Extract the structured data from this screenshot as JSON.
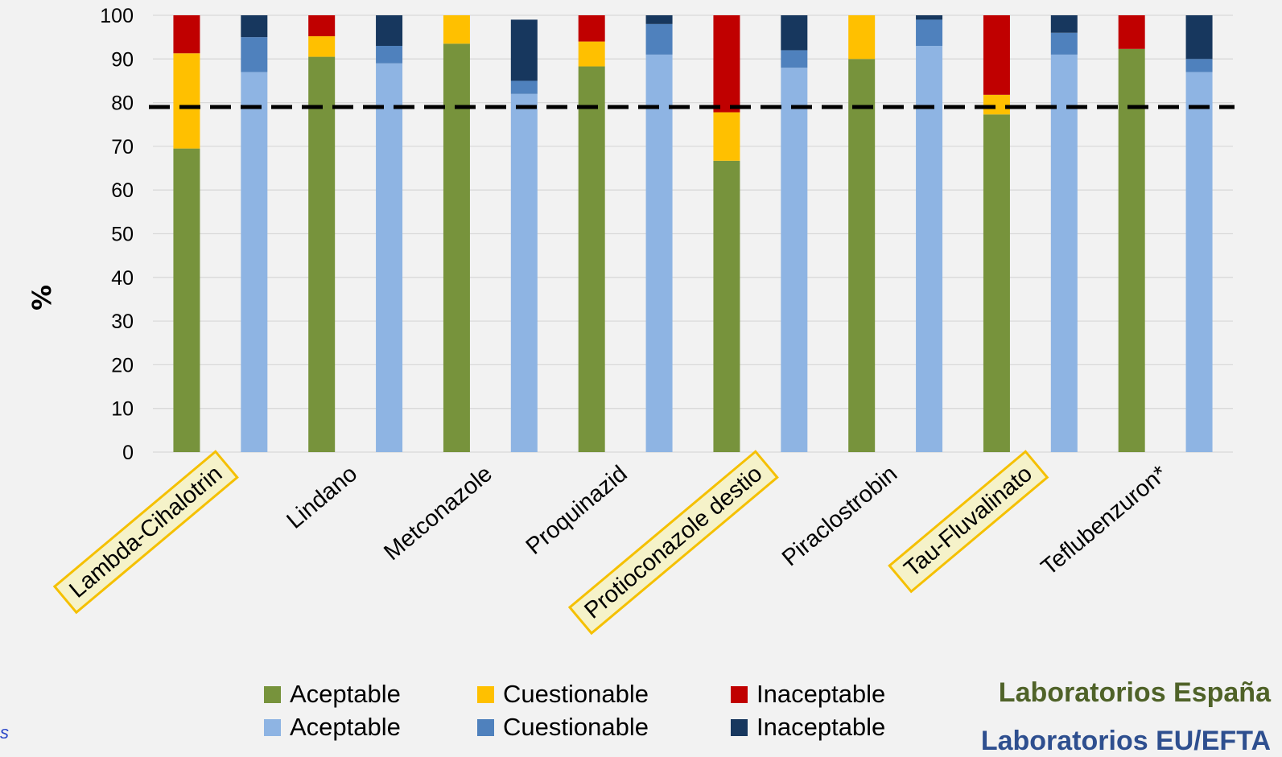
{
  "chart_data": {
    "type": "bar",
    "stacked": true,
    "ylabel": "%",
    "ylim": [
      0,
      100
    ],
    "yticks": [
      0,
      10,
      20,
      30,
      40,
      50,
      60,
      70,
      80,
      90,
      100
    ],
    "grid": true,
    "threshold_line": 79,
    "categories": [
      "Lambda-Cihalotrin",
      "Lindano",
      "Metconazole",
      "Proquinazid",
      "Protioconazole destio",
      "Piraclostrobin",
      "Tau-Fluvalinato",
      "Teflubenzuron*"
    ],
    "highlighted_categories": [
      "Lambda-Cihalotrin",
      "Protioconazole destio",
      "Tau-Fluvalinato"
    ],
    "groups": [
      {
        "name": "Laboratorios España",
        "series": [
          {
            "name": "Aceptable",
            "color": "#77933c",
            "values": [
              69.5,
              90.5,
              93.5,
              88.3,
              66.7,
              90.0,
              77.3,
              92.3
            ]
          },
          {
            "name": "Cuestionable",
            "color": "#ffc000",
            "values": [
              21.8,
              4.7,
              6.5,
              5.7,
              11.1,
              10.0,
              4.5,
              0
            ]
          },
          {
            "name": "Inaceptable",
            "color": "#c00000",
            "values": [
              8.7,
              4.8,
              0,
              6.0,
              22.2,
              0,
              18.2,
              7.7
            ]
          }
        ]
      },
      {
        "name": "Laboratorios EU/EFTA",
        "series": [
          {
            "name": "Aceptable",
            "color": "#8eb4e3",
            "values": [
              87.0,
              89.0,
              82.0,
              91.0,
              88.0,
              93.0,
              91.0,
              87.0
            ]
          },
          {
            "name": "Cuestionable",
            "color": "#4f81bd",
            "values": [
              8.0,
              4.0,
              3.0,
              7.0,
              4.0,
              6.0,
              5.0,
              3.0
            ]
          },
          {
            "name": "Inaceptable",
            "color": "#17375e",
            "values": [
              5.0,
              7.0,
              14.0,
              2.0,
              8.0,
              1.0,
              4.0,
              10.0
            ]
          }
        ]
      }
    ],
    "legend": {
      "placement": "bottom",
      "rows": [
        [
          "Aceptable",
          "Cuestionable",
          "Inaceptable"
        ],
        [
          "Aceptable",
          "Cuestionable",
          "Inaceptable"
        ]
      ]
    }
  },
  "notes": {
    "spain": "Laboratorios España",
    "spain_color": "#4f6228",
    "eu": "Laboratorios EU/EFTA",
    "eu_color": "#2e4f8f"
  },
  "edge_mark": "s"
}
